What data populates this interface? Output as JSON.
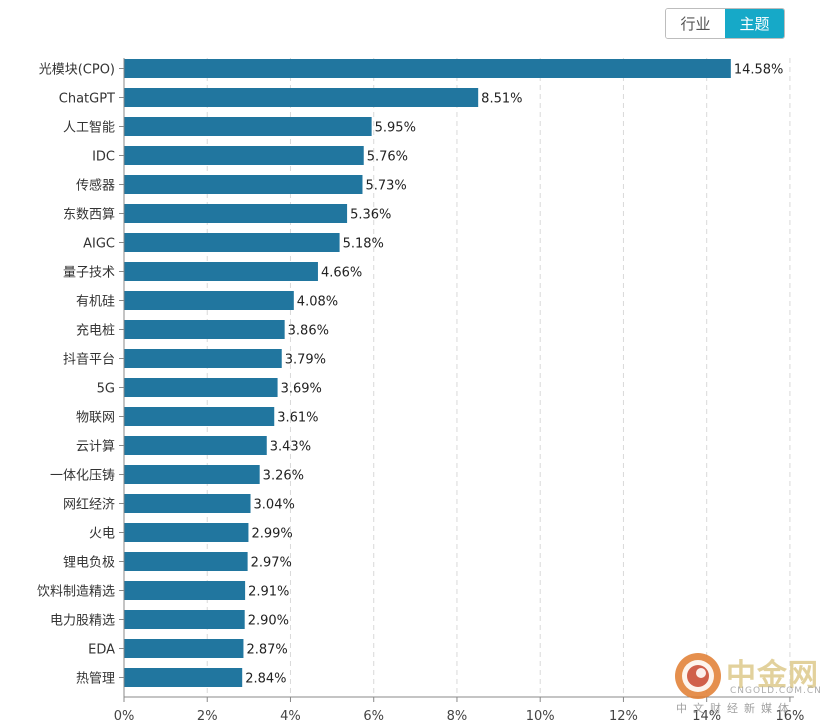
{
  "toggle": {
    "industry_label": "行业",
    "theme_label": "主题",
    "active": "theme"
  },
  "watermark": {
    "name": "中金网",
    "domain": "CNGOLD.COM.CN",
    "tagline": "中文财经新媒体"
  },
  "chart_data": {
    "type": "bar",
    "orientation": "horizontal",
    "title": "",
    "xlabel": "",
    "ylabel": "",
    "xlim": [
      0,
      16
    ],
    "x_ticks": [
      0,
      2,
      4,
      6,
      8,
      10,
      12,
      14,
      16
    ],
    "x_tick_labels": [
      "0%",
      "2%",
      "4%",
      "6%",
      "8%",
      "10%",
      "12%",
      "14%",
      "16%"
    ],
    "grid": "vertical dashed",
    "bar_color": "#21769f",
    "categories": [
      "光模块(CPO)",
      "ChatGPT",
      "人工智能",
      "IDC",
      "传感器",
      "东数西算",
      "AIGC",
      "量子技术",
      "有机硅",
      "充电桩",
      "抖音平台",
      "5G",
      "物联网",
      "云计算",
      "一体化压铸",
      "网红经济",
      "火电",
      "锂电负极",
      "饮料制造精选",
      "电力股精选",
      "EDA",
      "热管理"
    ],
    "values": [
      14.58,
      8.51,
      5.95,
      5.76,
      5.73,
      5.36,
      5.18,
      4.66,
      4.08,
      3.86,
      3.79,
      3.69,
      3.61,
      3.43,
      3.26,
      3.04,
      2.99,
      2.97,
      2.91,
      2.9,
      2.87,
      2.84
    ],
    "value_labels": [
      "14.58%",
      "8.51%",
      "5.95%",
      "5.76%",
      "5.73%",
      "5.36%",
      "5.18%",
      "4.66%",
      "4.08%",
      "3.86%",
      "3.79%",
      "3.69%",
      "3.61%",
      "3.43%",
      "3.26%",
      "3.04%",
      "2.99%",
      "2.97%",
      "2.91%",
      "2.90%",
      "2.87%",
      "2.84%"
    ]
  }
}
